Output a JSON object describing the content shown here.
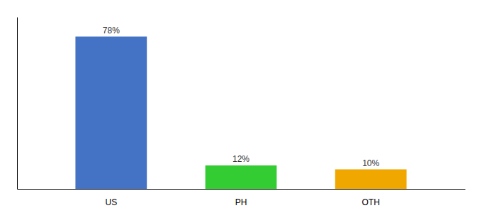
{
  "chart_data": {
    "type": "bar",
    "categories": [
      "US",
      "PH",
      "OTH"
    ],
    "values": [
      78,
      12,
      10
    ],
    "value_labels": [
      "78%",
      "12%",
      "10%"
    ],
    "colors": [
      "#4472c4",
      "#33cc33",
      "#f0a800"
    ],
    "ylim": [
      0,
      88
    ],
    "data_labels": true,
    "tick_labels": "x"
  }
}
